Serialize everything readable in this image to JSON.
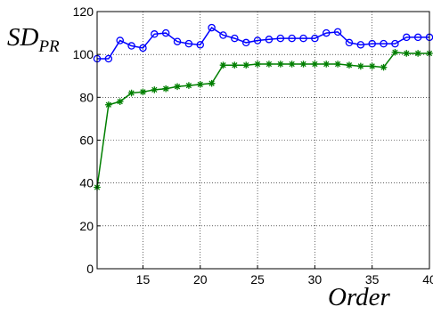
{
  "chart_data": {
    "type": "line",
    "xlabel_main": "SD",
    "ylabel_main": "SD",
    "ylabel_sub": "PR",
    "xlabel": "Order",
    "xlim": [
      11,
      40
    ],
    "ylim": [
      0,
      120
    ],
    "xticks": [
      15,
      20,
      25,
      30,
      35,
      40
    ],
    "yticks": [
      0,
      20,
      40,
      60,
      80,
      100,
      120
    ],
    "grid": true,
    "x": [
      11,
      12,
      13,
      14,
      15,
      16,
      17,
      18,
      19,
      20,
      21,
      22,
      23,
      24,
      25,
      26,
      27,
      28,
      29,
      30,
      31,
      32,
      33,
      34,
      35,
      36,
      37,
      38,
      39,
      40
    ],
    "series": [
      {
        "color": "#0000ff",
        "marker": "circle",
        "values": [
          98,
          98,
          106.5,
          104,
          103,
          109.5,
          110,
          106,
          105,
          104.5,
          112.5,
          109,
          107.5,
          105.5,
          106.5,
          107,
          107.5,
          107.5,
          107.5,
          107.5,
          110,
          110.5,
          105.5,
          104.5,
          105,
          105,
          105,
          108,
          108,
          108
        ]
      },
      {
        "color": "#007f00",
        "marker": "star",
        "values": [
          38,
          76.5,
          78,
          82,
          82.5,
          83.5,
          84,
          85,
          85.5,
          86,
          86.5,
          95,
          95,
          95,
          95.5,
          95.5,
          95.5,
          95.5,
          95.5,
          95.5,
          95.5,
          95.5,
          95,
          94.5,
          94.5,
          94,
          101,
          100.5,
          100.5,
          100.5
        ]
      }
    ]
  }
}
